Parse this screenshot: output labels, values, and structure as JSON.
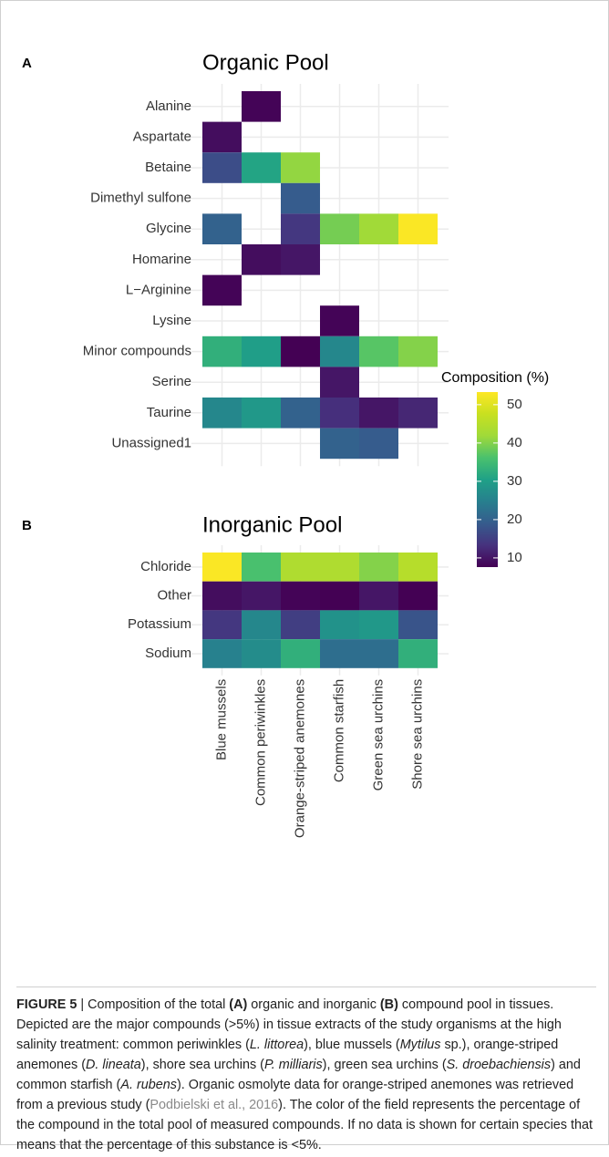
{
  "chart_data": [
    {
      "type": "heatmap",
      "panel_label": "A",
      "title": "Organic Pool",
      "x": [
        "Blue mussels",
        "Common periwinkles",
        "Orange-striped anemones",
        "Common starfish",
        "Green sea urchins",
        "Shore sea urchins"
      ],
      "y": [
        "Alanine",
        "Aspartate",
        "Betaine",
        "Dimethyl sulfone",
        "Glycine",
        "Homarine",
        "L−Arginine",
        "Lysine",
        "Minor compounds",
        "Serine",
        "Taurine",
        "Unassigned1"
      ],
      "values": [
        [
          null,
          8,
          null,
          null,
          null,
          null
        ],
        [
          9,
          null,
          null,
          null,
          null,
          null
        ],
        [
          17,
          31,
          41,
          null,
          null,
          null
        ],
        [
          null,
          null,
          19,
          null,
          null,
          null
        ],
        [
          20,
          null,
          14,
          39,
          42,
          53
        ],
        [
          null,
          9,
          10,
          null,
          null,
          null
        ],
        [
          8,
          null,
          null,
          null,
          null,
          null
        ],
        [
          null,
          null,
          null,
          8,
          null,
          null
        ],
        [
          33,
          30,
          7,
          26,
          37,
          40
        ],
        [
          null,
          null,
          null,
          10,
          null,
          null
        ],
        [
          26,
          29,
          20,
          13,
          10,
          12
        ],
        [
          null,
          null,
          null,
          20,
          19,
          null
        ]
      ]
    },
    {
      "type": "heatmap",
      "panel_label": "B",
      "title": "Inorganic Pool",
      "x": [
        "Blue mussels",
        "Common periwinkles",
        "Orange-striped anemones",
        "Common starfish",
        "Green sea urchins",
        "Shore sea urchins"
      ],
      "y": [
        "Chloride",
        "Other",
        "Potassium",
        "Sodium"
      ],
      "values": [
        [
          53,
          36,
          44,
          44,
          40,
          45
        ],
        [
          9,
          10,
          8,
          7,
          10,
          7
        ],
        [
          14,
          26,
          15,
          28,
          29,
          18
        ],
        [
          25,
          27,
          33,
          22,
          22,
          33
        ]
      ]
    }
  ],
  "colorbar": {
    "title": "Composition (%)",
    "colormap": "viridis",
    "lim": [
      7.6,
      53.3
    ],
    "ticks": [
      10,
      20,
      30,
      40,
      50
    ]
  },
  "caption": {
    "parts": [
      "FIGURE 5",
      " | Composition of the total ",
      "(A)",
      " organic and inorganic ",
      "(B)",
      " compound pool in tissues. Depicted are the major compounds (>5%) in tissue extracts of the study organisms at the high salinity treatment: common periwinkles (",
      "L. littorea",
      "), blue mussels (",
      "Mytilus",
      " sp.), orange-striped anemones (",
      "D. lineata",
      "), shore sea urchins (",
      "P. milliaris",
      "), green sea urchins (",
      "S. droebachiensis",
      ") and common starfish (",
      "A. rubens",
      "). Organic osmolyte data for orange-striped anemones was retrieved from a previous study (",
      "Podbielski et al., 2016",
      "). The color of the field represents the percentage of the compound in the total pool of measured compounds. If no data is shown for certain species that means that the percentage of this substance is <5%."
    ]
  }
}
